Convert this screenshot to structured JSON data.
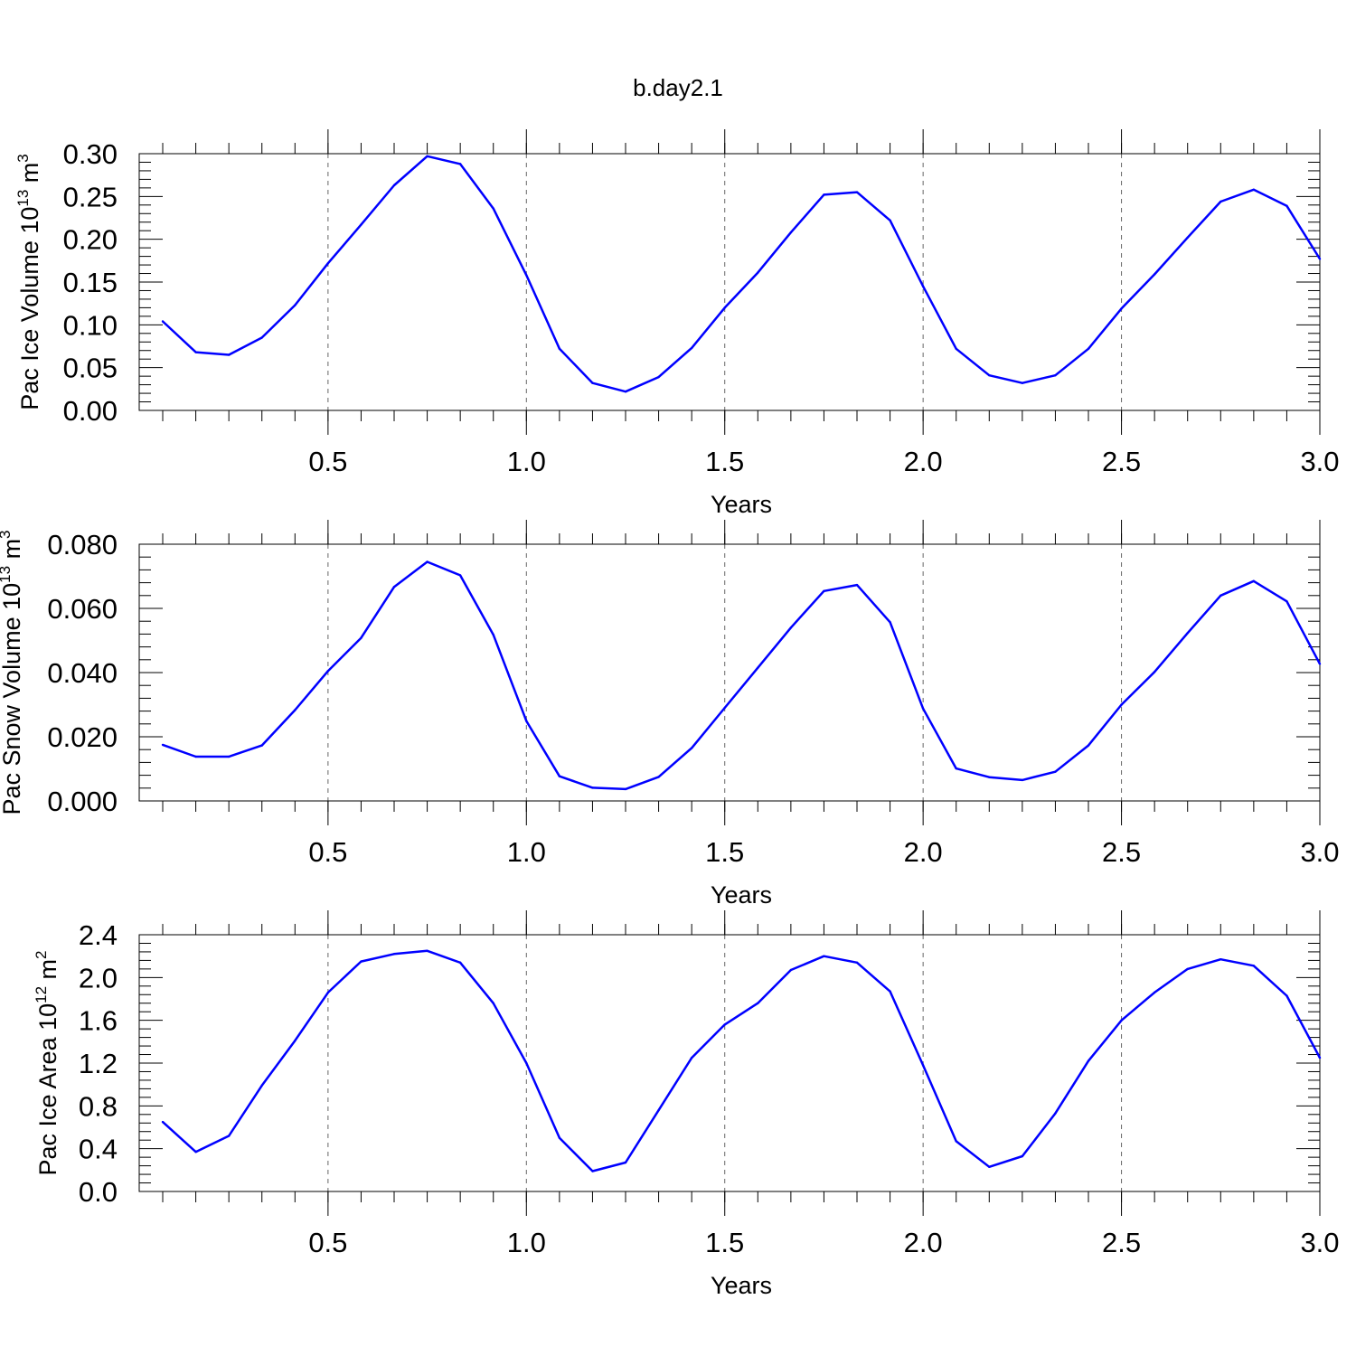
{
  "title": "b.day2.1",
  "chart_data": [
    {
      "type": "line",
      "xlabel": "Years",
      "ylabel": {
        "text": "Pac Ice Volume 10",
        "sup_exp": "13",
        "unit": " m",
        "sup_unit": "3"
      },
      "xlim": [
        0.0833,
        3.0
      ],
      "ylim": [
        0.0,
        0.3
      ],
      "xticks": [
        0.5,
        1.0,
        1.5,
        2.0,
        2.5,
        3.0
      ],
      "xticklabels": [
        "0.5",
        "1.0",
        "1.5",
        "2.0",
        "2.5",
        "3.0"
      ],
      "yticks": [
        0.0,
        0.05,
        0.1,
        0.15,
        0.2,
        0.25,
        0.3
      ],
      "yticklabels": [
        "0.00",
        "0.05",
        "0.10",
        "0.15",
        "0.20",
        "0.25",
        "0.30"
      ],
      "grid": "vertical dashed at major x ticks",
      "color": "#0000ff",
      "x": [
        0.0833,
        0.1667,
        0.25,
        0.3333,
        0.4167,
        0.5,
        0.5833,
        0.6667,
        0.75,
        0.8333,
        0.9167,
        1.0,
        1.0833,
        1.1667,
        1.25,
        1.3333,
        1.4167,
        1.5,
        1.5833,
        1.6667,
        1.75,
        1.8333,
        1.9167,
        2.0,
        2.0833,
        2.1667,
        2.25,
        2.3333,
        2.4167,
        2.5,
        2.5833,
        2.6667,
        2.75,
        2.8333,
        2.9167,
        3.0
      ],
      "values": [
        0.104,
        0.068,
        0.065,
        0.085,
        0.123,
        0.172,
        0.217,
        0.263,
        0.297,
        0.288,
        0.236,
        0.158,
        0.072,
        0.032,
        0.022,
        0.039,
        0.073,
        0.12,
        0.161,
        0.208,
        0.252,
        0.255,
        0.222,
        0.145,
        0.072,
        0.041,
        0.032,
        0.041,
        0.072,
        0.119,
        0.159,
        0.202,
        0.244,
        0.258,
        0.239,
        0.177
      ]
    },
    {
      "type": "line",
      "xlabel": "Years",
      "ylabel": {
        "text": "Pac Snow Volume 10",
        "sup_exp": "13",
        "unit": " m",
        "sup_unit": "3"
      },
      "xlim": [
        0.0833,
        3.0
      ],
      "ylim": [
        0.0,
        0.08
      ],
      "xticks": [
        0.5,
        1.0,
        1.5,
        2.0,
        2.5,
        3.0
      ],
      "xticklabels": [
        "0.5",
        "1.0",
        "1.5",
        "2.0",
        "2.5",
        "3.0"
      ],
      "yticks": [
        0.0,
        0.02,
        0.04,
        0.06,
        0.08
      ],
      "yticklabels": [
        "0.000",
        "0.020",
        "0.040",
        "0.060",
        "0.080"
      ],
      "grid": "vertical dashed at major x ticks",
      "color": "#0000ff",
      "x": [
        0.0833,
        0.1667,
        0.25,
        0.3333,
        0.4167,
        0.5,
        0.5833,
        0.6667,
        0.75,
        0.8333,
        0.9167,
        1.0,
        1.0833,
        1.1667,
        1.25,
        1.3333,
        1.4167,
        1.5,
        1.5833,
        1.6667,
        1.75,
        1.8333,
        1.9167,
        2.0,
        2.0833,
        2.1667,
        2.25,
        2.3333,
        2.4167,
        2.5,
        2.5833,
        2.6667,
        2.75,
        2.8333,
        2.9167,
        3.0
      ],
      "values": [
        0.0175,
        0.0138,
        0.0138,
        0.0173,
        0.0283,
        0.0405,
        0.0508,
        0.0667,
        0.0745,
        0.0703,
        0.0518,
        0.0249,
        0.0077,
        0.0041,
        0.0037,
        0.0075,
        0.0165,
        0.029,
        0.0415,
        0.054,
        0.0654,
        0.0673,
        0.0557,
        0.0288,
        0.0101,
        0.0074,
        0.0065,
        0.0091,
        0.0173,
        0.03,
        0.0402,
        0.0523,
        0.064,
        0.0685,
        0.0622,
        0.0427
      ]
    },
    {
      "type": "line",
      "xlabel": "Years",
      "ylabel": {
        "text": "Pac Ice Area 10",
        "sup_exp": "12",
        "unit": " m",
        "sup_unit": "2"
      },
      "xlim": [
        0.0833,
        3.0
      ],
      "ylim": [
        0.0,
        2.4
      ],
      "xticks": [
        0.5,
        1.0,
        1.5,
        2.0,
        2.5,
        3.0
      ],
      "xticklabels": [
        "0.5",
        "1.0",
        "1.5",
        "2.0",
        "2.5",
        "3.0"
      ],
      "yticks": [
        0.0,
        0.4,
        0.8,
        1.2,
        1.6,
        2.0,
        2.4
      ],
      "yticklabels": [
        "0.0",
        "0.4",
        "0.8",
        "1.2",
        "1.6",
        "2.0",
        "2.4"
      ],
      "grid": "vertical dashed at major x ticks",
      "color": "#0000ff",
      "x": [
        0.0833,
        0.1667,
        0.25,
        0.3333,
        0.4167,
        0.5,
        0.5833,
        0.6667,
        0.75,
        0.8333,
        0.9167,
        1.0,
        1.0833,
        1.1667,
        1.25,
        1.3333,
        1.4167,
        1.5,
        1.5833,
        1.6667,
        1.75,
        1.8333,
        1.9167,
        2.0,
        2.0833,
        2.1667,
        2.25,
        2.3333,
        2.4167,
        2.5,
        2.5833,
        2.6667,
        2.75,
        2.8333,
        2.9167,
        3.0
      ],
      "values": [
        0.65,
        0.37,
        0.52,
        0.99,
        1.41,
        1.86,
        2.15,
        2.22,
        2.25,
        2.14,
        1.76,
        1.2,
        0.5,
        0.19,
        0.27,
        0.76,
        1.25,
        1.56,
        1.76,
        2.07,
        2.2,
        2.14,
        1.87,
        1.18,
        0.47,
        0.23,
        0.33,
        0.73,
        1.22,
        1.6,
        1.86,
        2.08,
        2.17,
        2.11,
        1.83,
        1.25
      ]
    }
  ]
}
